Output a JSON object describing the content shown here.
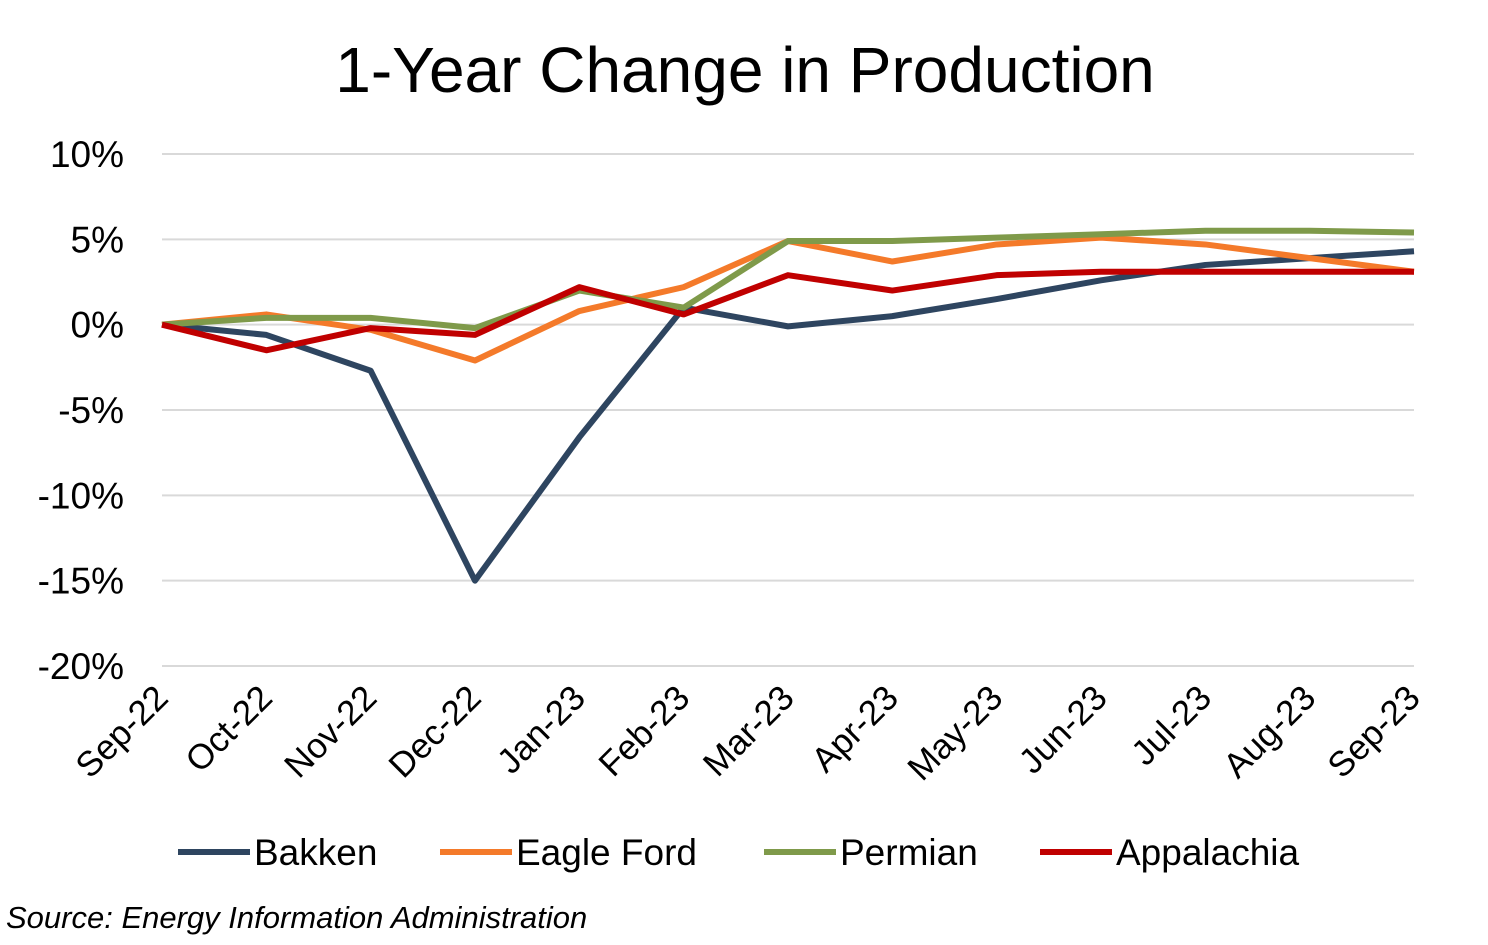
{
  "chart_data": {
    "type": "line",
    "title": "1-Year Change in Production",
    "xlabel": "",
    "ylabel": "",
    "ylim": [
      -20,
      10
    ],
    "yticks": [
      10,
      5,
      0,
      -5,
      -10,
      -15,
      -20
    ],
    "ytick_labels": [
      "10%",
      "5%",
      "0%",
      "-5%",
      "-10%",
      "-15%",
      "-20%"
    ],
    "grid": true,
    "legend_position": "bottom",
    "categories": [
      "Sep-22",
      "Oct-22",
      "Nov-22",
      "Dec-22",
      "Jan-23",
      "Feb-23",
      "Mar-23",
      "Apr-23",
      "May-23",
      "Jun-23",
      "Jul-23",
      "Aug-23",
      "Sep-23"
    ],
    "series": [
      {
        "name": "Bakken",
        "color": "#2E4560",
        "values": [
          0,
          -0.6,
          -2.7,
          -15.0,
          -6.6,
          1.0,
          -0.1,
          0.5,
          1.5,
          2.6,
          3.5,
          3.9,
          4.3
        ]
      },
      {
        "name": "Eagle Ford",
        "color": "#F47A2A",
        "values": [
          0,
          0.6,
          -0.3,
          -2.1,
          0.8,
          2.2,
          4.9,
          3.7,
          4.7,
          5.1,
          4.7,
          3.9,
          3.1
        ]
      },
      {
        "name": "Permian",
        "color": "#7F9A4A",
        "values": [
          0,
          0.4,
          0.4,
          -0.2,
          2.0,
          1.0,
          4.9,
          4.9,
          5.1,
          5.3,
          5.5,
          5.5,
          5.4
        ]
      },
      {
        "name": "Appalachia",
        "color": "#C00000",
        "values": [
          0,
          -1.5,
          -0.2,
          -0.6,
          2.2,
          0.6,
          2.9,
          2.0,
          2.9,
          3.1,
          3.1,
          3.1,
          3.1
        ]
      }
    ]
  },
  "source": "Source: Energy Information Administration"
}
